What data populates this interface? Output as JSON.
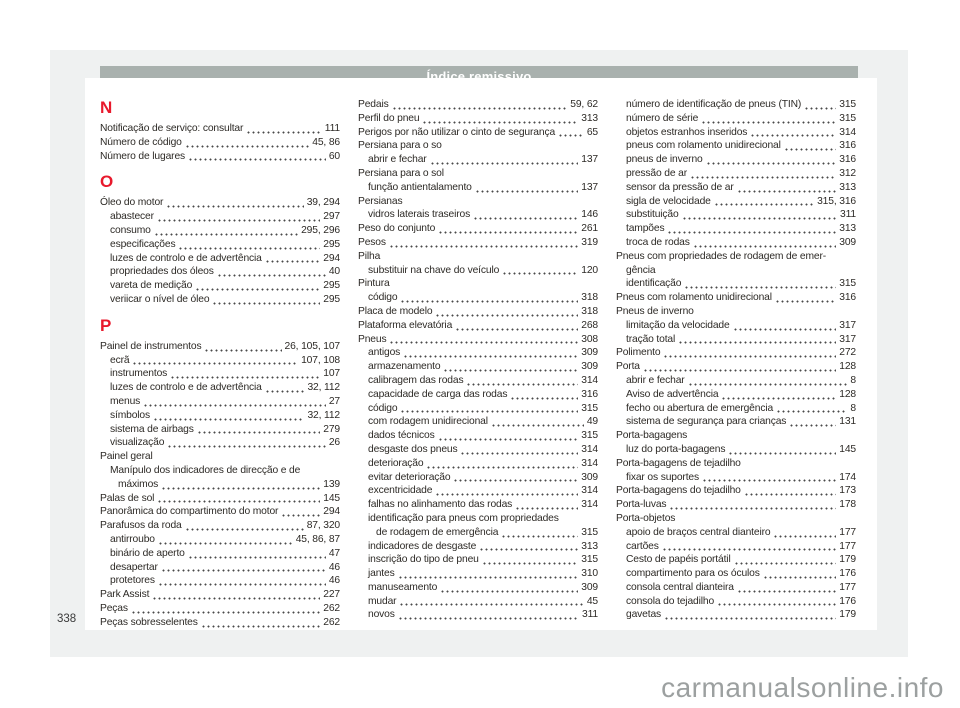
{
  "page": {
    "header_title": "Índice remissivo",
    "page_number": "338",
    "watermark": "carmanualsonline.info"
  },
  "colors": {
    "header_bar": "#a9b1ae",
    "section_letter_red": "#e8192c",
    "page_background": "#eff1f1",
    "body_text": "#2d2a26",
    "watermark_gray": "#9ca0a0"
  },
  "columns": [
    {
      "rows": [
        {
          "type": "letter",
          "text": "N"
        },
        {
          "type": "entry",
          "indent": 0,
          "text": "Notificação de serviço: consultar",
          "pages": "111"
        },
        {
          "type": "entry",
          "indent": 0,
          "text": "Número de código",
          "pages": "45, 86"
        },
        {
          "type": "entry",
          "indent": 0,
          "text": "Número de lugares",
          "pages": "60"
        },
        {
          "type": "letter",
          "text": "O"
        },
        {
          "type": "entry",
          "indent": 0,
          "text": "Óleo do motor",
          "pages": "39, 294"
        },
        {
          "type": "entry",
          "indent": 1,
          "text": "abastecer",
          "pages": "297"
        },
        {
          "type": "entry",
          "indent": 1,
          "text": "consumo",
          "pages": "295, 296"
        },
        {
          "type": "entry",
          "indent": 1,
          "text": "especificações",
          "pages": "295"
        },
        {
          "type": "entry",
          "indent": 1,
          "text": "luzes de controlo e de advertência",
          "pages": "294"
        },
        {
          "type": "entry",
          "indent": 1,
          "text": "propriedades dos óleos",
          "pages": "40"
        },
        {
          "type": "entry",
          "indent": 1,
          "text": "vareta de medição",
          "pages": "295"
        },
        {
          "type": "entry",
          "indent": 1,
          "text": "veriicar o nível de óleo",
          "pages": "295"
        },
        {
          "type": "letter",
          "text": "P"
        },
        {
          "type": "entry",
          "indent": 0,
          "text": "Painel de instrumentos",
          "pages": "26, 105, 107"
        },
        {
          "type": "entry",
          "indent": 1,
          "text": "ecrã",
          "pages": "107, 108"
        },
        {
          "type": "entry",
          "indent": 1,
          "text": "instrumentos",
          "pages": "107"
        },
        {
          "type": "entry",
          "indent": 1,
          "text": "luzes de controlo e de advertência",
          "pages": "32, 112"
        },
        {
          "type": "entry",
          "indent": 1,
          "text": "menus",
          "pages": "27"
        },
        {
          "type": "entry",
          "indent": 1,
          "text": "símbolos",
          "pages": "32, 112"
        },
        {
          "type": "entry",
          "indent": 1,
          "text": "sistema de airbags",
          "pages": "279"
        },
        {
          "type": "entry",
          "indent": 1,
          "text": "visualização",
          "pages": "26"
        },
        {
          "type": "entry",
          "indent": 0,
          "text": "Painel geral"
        },
        {
          "type": "entry",
          "indent": 1,
          "text": "Manípulo dos indicadores de direcção e de"
        },
        {
          "type": "entry",
          "indent": 2,
          "text": "máximos",
          "pages": "139"
        },
        {
          "type": "entry",
          "indent": 0,
          "text": "Palas de sol",
          "pages": "145"
        },
        {
          "type": "entry",
          "indent": 0,
          "text": "Panorâmica do compartimento do motor",
          "pages": "294"
        },
        {
          "type": "entry",
          "indent": 0,
          "text": "Parafusos da roda",
          "pages": "87, 320"
        },
        {
          "type": "entry",
          "indent": 1,
          "text": "antirroubo",
          "pages": "45, 86, 87"
        },
        {
          "type": "entry",
          "indent": 1,
          "text": "binário de aperto",
          "pages": "47"
        },
        {
          "type": "entry",
          "indent": 1,
          "text": "desapertar",
          "pages": "46"
        },
        {
          "type": "entry",
          "indent": 1,
          "text": "protetores",
          "pages": "46"
        },
        {
          "type": "entry",
          "indent": 0,
          "text": "Park Assist",
          "pages": "227"
        },
        {
          "type": "entry",
          "indent": 0,
          "text": "Peças",
          "pages": "262"
        },
        {
          "type": "entry",
          "indent": 0,
          "text": "Peças sobresselentes",
          "pages": "262"
        }
      ]
    },
    {
      "rows": [
        {
          "type": "entry",
          "indent": 0,
          "text": "Pedais",
          "pages": "59, 62"
        },
        {
          "type": "entry",
          "indent": 0,
          "text": "Perfil do pneu",
          "pages": "313"
        },
        {
          "type": "entry",
          "indent": 0,
          "text": "Perigos por não utilizar o cinto de segurança",
          "pages": "65"
        },
        {
          "type": "entry",
          "indent": 0,
          "text": "Persiana para o so"
        },
        {
          "type": "entry",
          "indent": 1,
          "text": "abrir e fechar",
          "pages": "137"
        },
        {
          "type": "entry",
          "indent": 0,
          "text": "Persiana para o sol"
        },
        {
          "type": "entry",
          "indent": 1,
          "text": "função antientalamento",
          "pages": "137"
        },
        {
          "type": "entry",
          "indent": 0,
          "text": "Persianas"
        },
        {
          "type": "entry",
          "indent": 1,
          "text": "vidros laterais traseiros",
          "pages": "146"
        },
        {
          "type": "entry",
          "indent": 0,
          "text": "Peso do conjunto",
          "pages": "261"
        },
        {
          "type": "entry",
          "indent": 0,
          "text": "Pesos",
          "pages": "319"
        },
        {
          "type": "entry",
          "indent": 0,
          "text": "Pilha"
        },
        {
          "type": "entry",
          "indent": 1,
          "text": "substituir na chave do veículo",
          "pages": "120"
        },
        {
          "type": "entry",
          "indent": 0,
          "text": "Pintura"
        },
        {
          "type": "entry",
          "indent": 1,
          "text": "código",
          "pages": "318"
        },
        {
          "type": "entry",
          "indent": 0,
          "text": "Placa de modelo",
          "pages": "318"
        },
        {
          "type": "entry",
          "indent": 0,
          "text": "Plataforma elevatória",
          "pages": "268"
        },
        {
          "type": "entry",
          "indent": 0,
          "text": "Pneus",
          "pages": "308"
        },
        {
          "type": "entry",
          "indent": 1,
          "text": "antigos",
          "pages": "309"
        },
        {
          "type": "entry",
          "indent": 1,
          "text": "armazenamento",
          "pages": "309"
        },
        {
          "type": "entry",
          "indent": 1,
          "text": "calibragem das rodas",
          "pages": "314"
        },
        {
          "type": "entry",
          "indent": 1,
          "text": "capacidade de carga das rodas",
          "pages": "316"
        },
        {
          "type": "entry",
          "indent": 1,
          "text": "código",
          "pages": "315"
        },
        {
          "type": "entry",
          "indent": 1,
          "text": "com rodagem unidirecional",
          "pages": "49"
        },
        {
          "type": "entry",
          "indent": 1,
          "text": "dados técnicos",
          "pages": "315"
        },
        {
          "type": "entry",
          "indent": 1,
          "text": "desgaste dos pneus",
          "pages": "314"
        },
        {
          "type": "entry",
          "indent": 1,
          "text": "deterioração",
          "pages": "314"
        },
        {
          "type": "entry",
          "indent": 1,
          "text": "evitar deterioração",
          "pages": "309"
        },
        {
          "type": "entry",
          "indent": 1,
          "text": "excentricidade",
          "pages": "314"
        },
        {
          "type": "entry",
          "indent": 1,
          "text": "falhas no alinhamento das rodas",
          "pages": "314"
        },
        {
          "type": "entry",
          "indent": 1,
          "text": "identificação para pneus com propriedades"
        },
        {
          "type": "entry",
          "indent": 2,
          "text": "de rodagem de emergência",
          "pages": "315"
        },
        {
          "type": "entry",
          "indent": 1,
          "text": "indicadores de desgaste",
          "pages": "313"
        },
        {
          "type": "entry",
          "indent": 1,
          "text": "inscrição do tipo de pneu",
          "pages": "315"
        },
        {
          "type": "entry",
          "indent": 1,
          "text": "jantes",
          "pages": "310"
        },
        {
          "type": "entry",
          "indent": 1,
          "text": "manuseamento",
          "pages": "309"
        },
        {
          "type": "entry",
          "indent": 1,
          "text": "mudar",
          "pages": "45"
        },
        {
          "type": "entry",
          "indent": 1,
          "text": "novos",
          "pages": "311"
        }
      ]
    },
    {
      "rows": [
        {
          "type": "entry",
          "indent": 1,
          "text": "número de identificação de pneus (TIN)",
          "pages": "315"
        },
        {
          "type": "entry",
          "indent": 1,
          "text": "número de série",
          "pages": "315"
        },
        {
          "type": "entry",
          "indent": 1,
          "text": "objetos estranhos inseridos",
          "pages": "314"
        },
        {
          "type": "entry",
          "indent": 1,
          "text": "pneus com rolamento unidirecional",
          "pages": "316"
        },
        {
          "type": "entry",
          "indent": 1,
          "text": "pneus de inverno",
          "pages": "316"
        },
        {
          "type": "entry",
          "indent": 1,
          "text": "pressão de ar",
          "pages": "312"
        },
        {
          "type": "entry",
          "indent": 1,
          "text": "sensor da pressão de ar",
          "pages": "313"
        },
        {
          "type": "entry",
          "indent": 1,
          "text": "sigla de velocidade",
          "pages": "315, 316"
        },
        {
          "type": "entry",
          "indent": 1,
          "text": "substituição",
          "pages": "311"
        },
        {
          "type": "entry",
          "indent": 1,
          "text": "tampões",
          "pages": "313"
        },
        {
          "type": "entry",
          "indent": 1,
          "text": "troca de rodas",
          "pages": "309"
        },
        {
          "type": "entry",
          "indent": 0,
          "text": "Pneus com propriedades de rodagem de emer-"
        },
        {
          "type": "entry",
          "indent": 1,
          "text": "gência"
        },
        {
          "type": "entry",
          "indent": 1,
          "text": "identificação",
          "pages": "315"
        },
        {
          "type": "entry",
          "indent": 0,
          "text": "Pneus com rolamento unidirecional",
          "pages": "316"
        },
        {
          "type": "entry",
          "indent": 0,
          "text": "Pneus de inverno"
        },
        {
          "type": "entry",
          "indent": 1,
          "text": "limitação da velocidade",
          "pages": "317"
        },
        {
          "type": "entry",
          "indent": 1,
          "text": "tração total",
          "pages": "317"
        },
        {
          "type": "entry",
          "indent": 0,
          "text": "Polimento",
          "pages": "272"
        },
        {
          "type": "entry",
          "indent": 0,
          "text": "Porta",
          "pages": "128"
        },
        {
          "type": "entry",
          "indent": 1,
          "text": "abrir e fechar",
          "pages": "8"
        },
        {
          "type": "entry",
          "indent": 1,
          "text": "Aviso de advertência",
          "pages": "128"
        },
        {
          "type": "entry",
          "indent": 1,
          "text": "fecho ou abertura de emergência",
          "pages": "8"
        },
        {
          "type": "entry",
          "indent": 1,
          "text": "sistema de segurança para crianças",
          "pages": "131"
        },
        {
          "type": "entry",
          "indent": 0,
          "text": "Porta-bagagens"
        },
        {
          "type": "entry",
          "indent": 1,
          "text": "luz do porta-bagagens",
          "pages": "145"
        },
        {
          "type": "entry",
          "indent": 0,
          "text": "Porta-bagagens de tejadilho"
        },
        {
          "type": "entry",
          "indent": 1,
          "text": "fixar os suportes",
          "pages": "174"
        },
        {
          "type": "entry",
          "indent": 0,
          "text": "Porta-bagagens do tejadilho",
          "pages": "173"
        },
        {
          "type": "entry",
          "indent": 0,
          "text": "Porta-luvas",
          "pages": "178"
        },
        {
          "type": "entry",
          "indent": 0,
          "text": "Porta-objetos"
        },
        {
          "type": "entry",
          "indent": 1,
          "text": "apoio de braços central dianteiro",
          "pages": "177"
        },
        {
          "type": "entry",
          "indent": 1,
          "text": "cartões",
          "pages": "177"
        },
        {
          "type": "entry",
          "indent": 1,
          "text": "Cesto de papéis portátil",
          "pages": "179"
        },
        {
          "type": "entry",
          "indent": 1,
          "text": "compartimento para os óculos",
          "pages": "176"
        },
        {
          "type": "entry",
          "indent": 1,
          "text": "consola central dianteira",
          "pages": "177"
        },
        {
          "type": "entry",
          "indent": 1,
          "text": "consola do tejadilho",
          "pages": "176"
        },
        {
          "type": "entry",
          "indent": 1,
          "text": "gavetas",
          "pages": "179"
        }
      ]
    }
  ]
}
